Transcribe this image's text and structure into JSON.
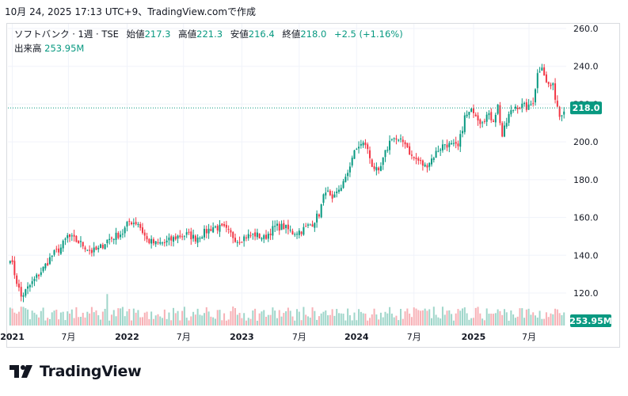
{
  "header": {
    "timestamp": "10月 24, 2025 17:13 UTC+9、TradingView.comで作成"
  },
  "legend": {
    "symbol": "ソフトバンク · 1週 · TSE",
    "open_label": "始値",
    "open": "217.3",
    "high_label": "高値",
    "high": "221.3",
    "low_label": "安値",
    "low": "216.4",
    "close_label": "終値",
    "close": "218.0",
    "change": "+2.5 (+1.16%)",
    "volume_label": "出来高",
    "volume": "253.95M"
  },
  "footer": {
    "brand": "TradingView",
    "logo_icon": "tradingview-logo-icon"
  },
  "colors": {
    "up": "#089981",
    "down": "#f23645",
    "price_line": "#089981",
    "volume_up": "#9fd6ca",
    "volume_down": "#f7b1b6"
  },
  "chart_data": {
    "type": "candlestick",
    "interval": "weekly",
    "y_axis": {
      "ticks": [
        "120.0",
        "140.0",
        "160.0",
        "180.0",
        "200.0",
        "220.0",
        "240.0",
        "260.0"
      ],
      "min": 110,
      "max": 262
    },
    "x_axis": {
      "ticks": [
        "2021",
        "7月",
        "2022",
        "7月",
        "2023",
        "7月",
        "2024",
        "7月",
        "2025",
        "7月"
      ]
    },
    "last_price": {
      "value": 218.0,
      "label": "218.0"
    },
    "last_volume": {
      "label": "253.95M"
    },
    "anchors": [
      [
        "2020-12-28",
        139
      ],
      [
        "2021-01-18",
        126
      ],
      [
        "2021-02-01",
        118
      ],
      [
        "2021-03-01",
        124
      ],
      [
        "2021-04-12",
        133
      ],
      [
        "2021-05-10",
        140
      ],
      [
        "2021-06-07",
        144
      ],
      [
        "2021-06-28",
        150
      ],
      [
        "2021-08-02",
        147
      ],
      [
        "2021-09-13",
        142
      ],
      [
        "2021-10-04",
        143
      ],
      [
        "2021-11-01",
        148
      ],
      [
        "2021-12-20",
        152
      ],
      [
        "2022-01-10",
        158
      ],
      [
        "2022-02-07",
        157
      ],
      [
        "2022-03-07",
        148
      ],
      [
        "2022-04-04",
        146
      ],
      [
        "2022-05-09",
        147
      ],
      [
        "2022-06-13",
        150
      ],
      [
        "2022-07-11",
        151
      ],
      [
        "2022-08-08",
        149
      ],
      [
        "2022-09-05",
        152
      ],
      [
        "2022-10-03",
        155
      ],
      [
        "2022-11-07",
        154
      ],
      [
        "2022-12-19",
        148
      ],
      [
        "2023-01-16",
        150
      ],
      [
        "2023-02-13",
        151
      ],
      [
        "2023-03-13",
        149
      ],
      [
        "2023-04-17",
        155
      ],
      [
        "2023-05-15",
        155
      ],
      [
        "2023-06-12",
        152
      ],
      [
        "2023-07-10",
        153
      ],
      [
        "2023-08-14",
        157
      ],
      [
        "2023-09-04",
        162
      ],
      [
        "2023-09-25",
        175
      ],
      [
        "2023-10-16",
        168
      ],
      [
        "2023-11-06",
        175
      ],
      [
        "2023-11-27",
        180
      ],
      [
        "2023-12-18",
        192
      ],
      [
        "2024-01-08",
        198
      ],
      [
        "2024-01-29",
        199
      ],
      [
        "2024-02-19",
        188
      ],
      [
        "2024-03-11",
        183
      ],
      [
        "2024-04-01",
        194
      ],
      [
        "2024-04-22",
        203
      ],
      [
        "2024-05-13",
        200
      ],
      [
        "2024-06-03",
        200
      ],
      [
        "2024-06-24",
        192
      ],
      [
        "2024-07-15",
        190
      ],
      [
        "2024-08-05",
        187
      ],
      [
        "2024-08-26",
        191
      ],
      [
        "2024-09-16",
        196
      ],
      [
        "2024-10-07",
        199
      ],
      [
        "2024-10-28",
        198
      ],
      [
        "2024-11-18",
        197
      ],
      [
        "2024-12-09",
        213
      ],
      [
        "2025-01-06",
        217
      ],
      [
        "2025-01-27",
        211
      ],
      [
        "2025-02-17",
        214
      ],
      [
        "2025-03-10",
        212
      ],
      [
        "2025-03-24",
        219
      ],
      [
        "2025-04-07",
        203
      ],
      [
        "2025-04-28",
        214
      ],
      [
        "2025-05-19",
        219
      ],
      [
        "2025-06-09",
        219
      ],
      [
        "2025-06-30",
        218
      ],
      [
        "2025-07-14",
        222
      ],
      [
        "2025-07-28",
        236
      ],
      [
        "2025-08-11",
        241
      ],
      [
        "2025-08-25",
        231
      ],
      [
        "2025-09-15",
        229
      ],
      [
        "2025-10-06",
        214
      ],
      [
        "2025-10-20",
        218
      ]
    ]
  }
}
